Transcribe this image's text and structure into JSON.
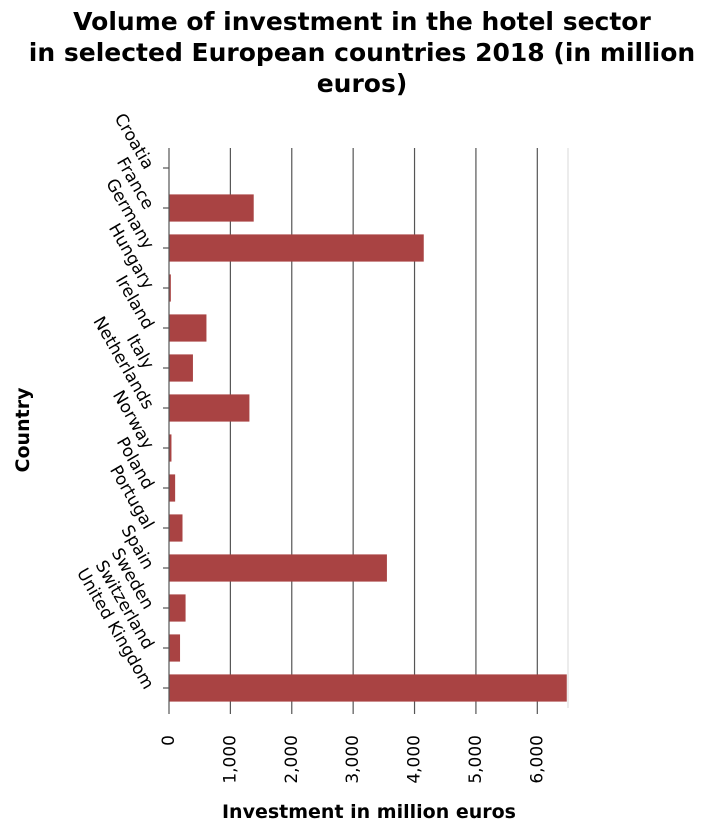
{
  "chart_data": {
    "type": "bar",
    "orientation": "horizontal",
    "title_lines": [
      "Volume of investment in the hotel sector",
      "in selected European countries 2018 (in million",
      "euros)"
    ],
    "xlabel": "Investment in million euros",
    "ylabel": "Country",
    "xlim": [
      0,
      6500
    ],
    "x_ticks": [
      0,
      1000,
      2000,
      3000,
      4000,
      5000,
      6000
    ],
    "x_tick_labels": [
      "0",
      "1,000",
      "2,000",
      "3,000",
      "4,000",
      "5,000",
      "6,000"
    ],
    "categories": [
      "Croatia",
      "France",
      "Germany",
      "Hungary",
      "Ireland",
      "Italy",
      "Netherlands",
      "Norway",
      "Poland",
      "Portugal",
      "Spain",
      "Sweden",
      "Switzerland",
      "United Kingdom"
    ],
    "values": [
      0,
      1380,
      4150,
      30,
      610,
      390,
      1310,
      40,
      100,
      220,
      3550,
      270,
      180,
      6480
    ],
    "grid": "vertical",
    "bar_color": "#a94343"
  }
}
